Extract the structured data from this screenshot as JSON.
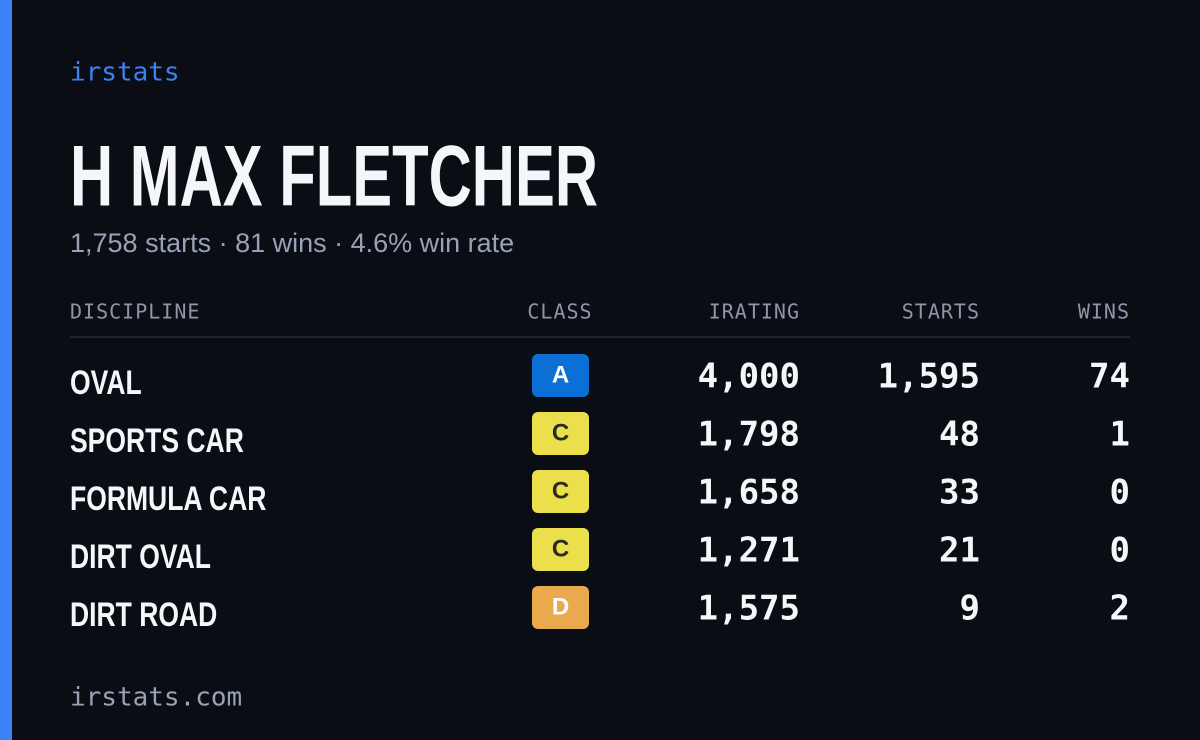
{
  "brand": "irstats",
  "header": {
    "title": "H MAX FLETCHER",
    "subtitle": "1,758 starts · 81 wins · 4.6% win rate"
  },
  "table": {
    "columns": [
      "DISCIPLINE",
      "CLASS",
      "IRATING",
      "STARTS",
      "WINS"
    ],
    "rows": [
      {
        "discipline": "OVAL",
        "class": "A",
        "irating": "4,000",
        "starts": "1,595",
        "wins": "74",
        "badge_color": "#0b6fd6",
        "badge_text_color": "#ffffff"
      },
      {
        "discipline": "SPORTS CAR",
        "class": "C",
        "irating": "1,798",
        "starts": "48",
        "wins": "1",
        "badge_color": "#ebe04c",
        "badge_text_color": "#2a2a20"
      },
      {
        "discipline": "FORMULA CAR",
        "class": "C",
        "irating": "1,658",
        "starts": "33",
        "wins": "0",
        "badge_color": "#ebe04c",
        "badge_text_color": "#2a2a20"
      },
      {
        "discipline": "DIRT OVAL",
        "class": "C",
        "irating": "1,271",
        "starts": "21",
        "wins": "0",
        "badge_color": "#ebe04c",
        "badge_text_color": "#2a2a20"
      },
      {
        "discipline": "DIRT ROAD",
        "class": "D",
        "irating": "1,575",
        "starts": "9",
        "wins": "2",
        "badge_color": "#eaa94c",
        "badge_text_color": "#ffffff"
      }
    ]
  },
  "footer": "irstats.com"
}
